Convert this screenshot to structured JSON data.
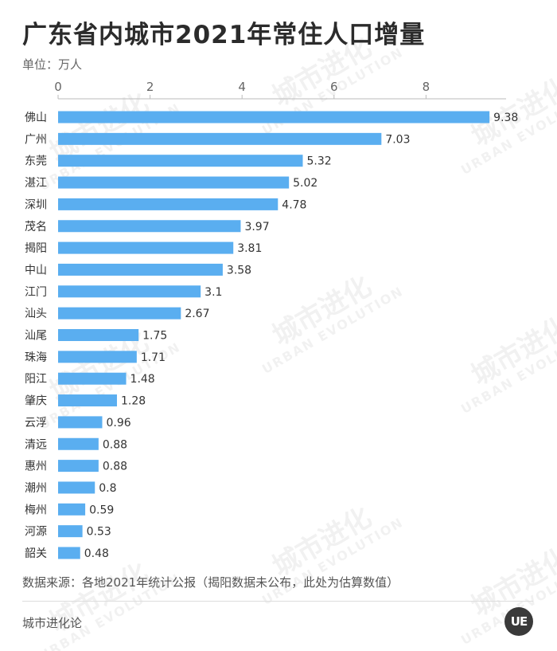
{
  "title": "广东省内城市2021年常住人口增量",
  "unit_label": "单位：万人",
  "footer": {
    "source": "数据来源：各地2021年统计公报（揭阳数据未公布，此处为估算数值）",
    "brand": "城市进化论",
    "logo_text": "UE"
  },
  "watermark": {
    "cn": "城市进化论",
    "en": "URBAN EVOLUTION"
  },
  "colors": {
    "bar": "#5aaef0",
    "axis": "#bbbbbb"
  },
  "chart_data": {
    "type": "bar",
    "orientation": "horizontal",
    "title": "广东省内城市2021年常住人口增量",
    "xlim": [
      0,
      10
    ],
    "xticks": [
      0,
      2,
      4,
      6,
      8
    ],
    "axis_position": "top",
    "grid": false,
    "categories": [
      "佛山",
      "广州",
      "东莞",
      "湛江",
      "深圳",
      "茂名",
      "揭阳",
      "中山",
      "江门",
      "汕头",
      "汕尾",
      "珠海",
      "阳江",
      "肇庆",
      "云浮",
      "清远",
      "惠州",
      "潮州",
      "梅州",
      "河源",
      "韶关"
    ],
    "values": [
      9.38,
      7.03,
      5.32,
      5.02,
      4.78,
      3.97,
      3.81,
      3.58,
      3.1,
      2.67,
      1.75,
      1.71,
      1.48,
      1.28,
      0.96,
      0.88,
      0.88,
      0.8,
      0.59,
      0.53,
      0.48
    ]
  }
}
